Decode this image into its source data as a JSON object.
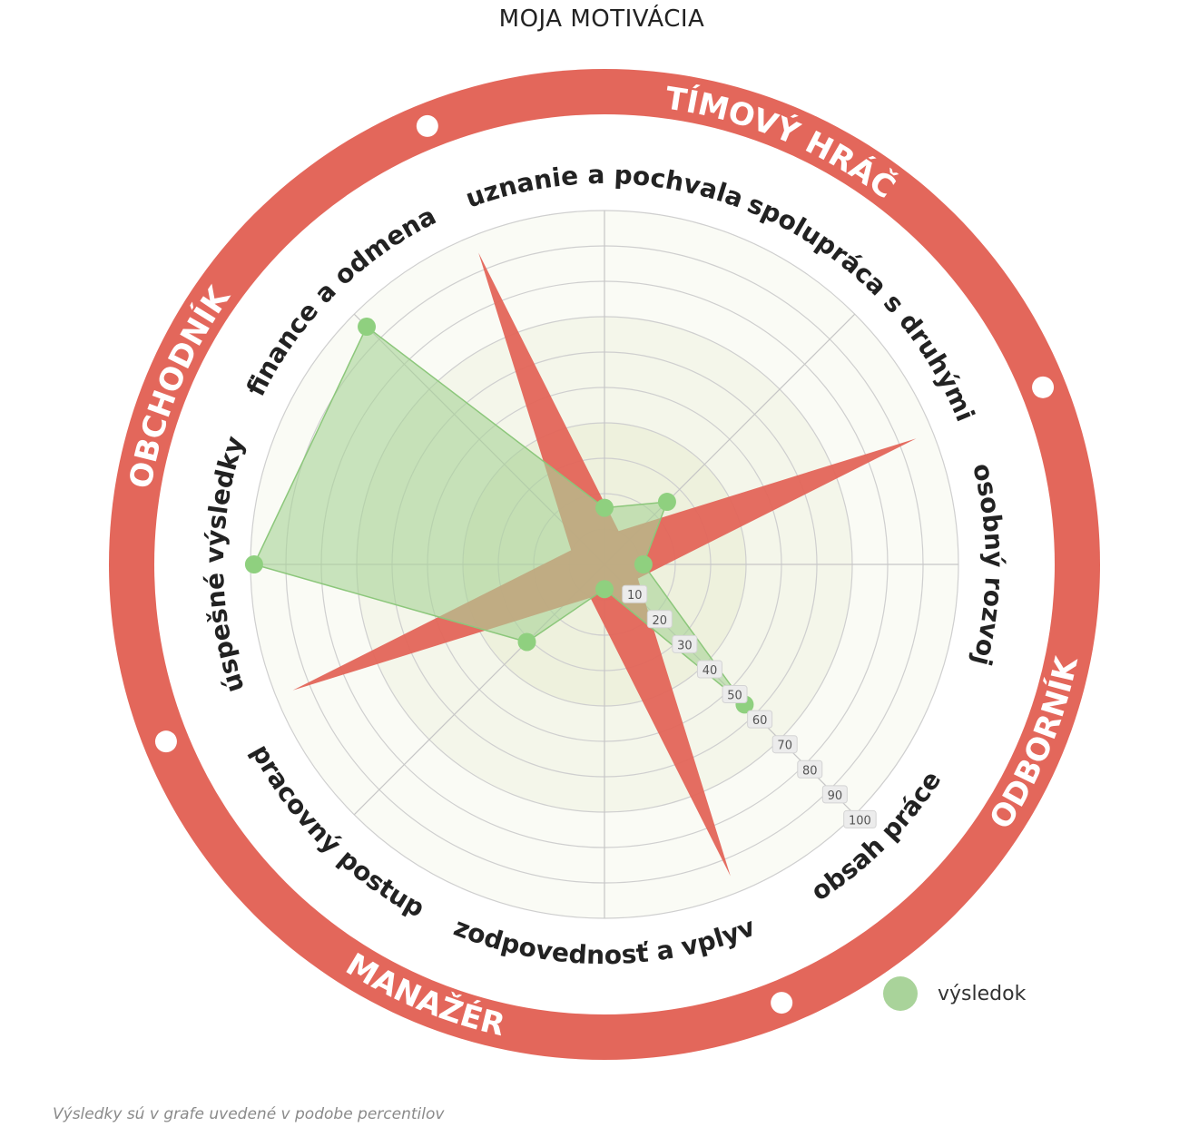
{
  "title": "MOJA MOTIVÁCIA",
  "footnote": "Výsledky sú v grafe uvedené v podobe percentilov",
  "colors": {
    "ring": "#e3675b",
    "star": "#e3675b",
    "series": "#a9d39a",
    "series_stroke": "#8cc77b",
    "point": "#8fd07f"
  },
  "chart_data": {
    "type": "radar",
    "axes": [
      "uznanie a pochvala",
      "spolupráca s druhými",
      "osobný rozvoj",
      "obsah práce",
      "zodpovednosť a vplyv",
      "pracovný postup",
      "úspešné výsledky",
      "finance a odmena"
    ],
    "rlim": [
      0,
      100
    ],
    "ticks": [
      10,
      20,
      30,
      40,
      50,
      60,
      70,
      80,
      90,
      100
    ],
    "grid": true,
    "series": [
      {
        "name": "výsledok",
        "values": [
          16,
          25,
          11,
          56,
          7,
          31,
          99,
          95
        ]
      }
    ],
    "legend_position": "bottom-right",
    "quadrants": [
      "TÍMOVÝ HRÁČ",
      "ODBORNÍK",
      "MANAŽÉR",
      "OBCHODNÍK"
    ],
    "star_background": {
      "description": "decorative four-pointed star",
      "tips": [
        {
          "angle_deg": -22,
          "value": 95
        },
        {
          "angle_deg": 68,
          "value": 95
        },
        {
          "angle_deg": 158,
          "value": 95
        },
        {
          "angle_deg": 248,
          "value": 95
        }
      ]
    }
  }
}
